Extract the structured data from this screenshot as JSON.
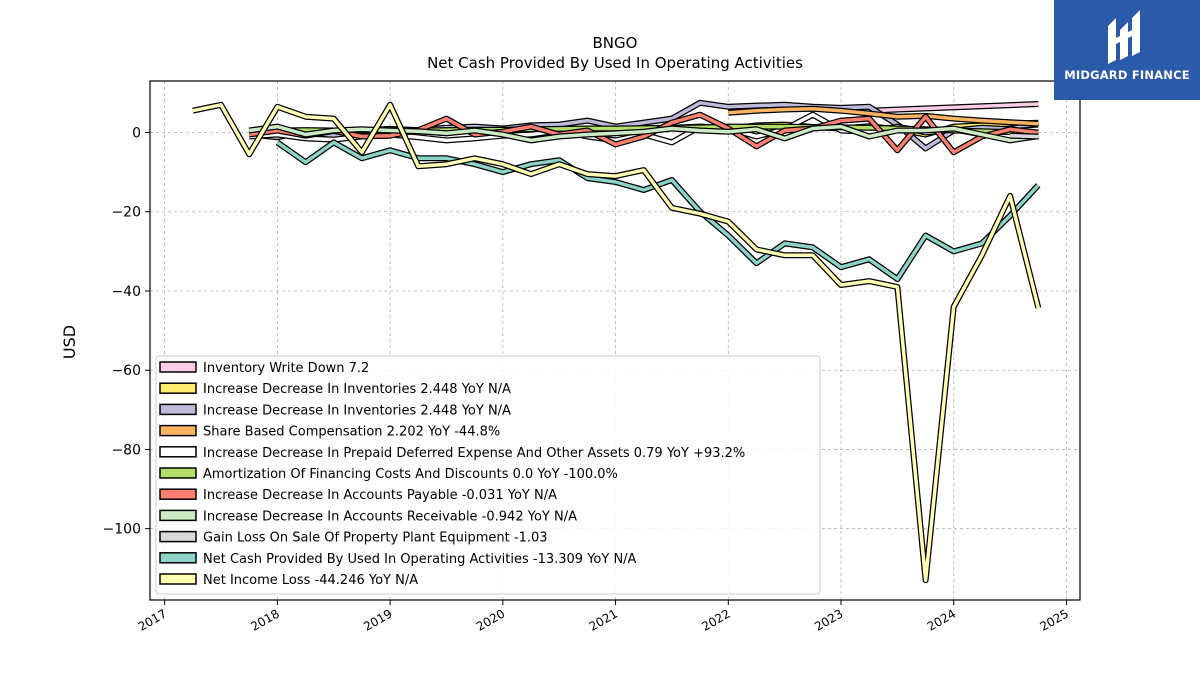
{
  "logo": {
    "text": "MIDGARD FINANCE"
  },
  "chart_data": {
    "type": "line",
    "title": "BNGO",
    "subtitle": "Net Cash Provided By Used In Operating Activities",
    "ylabel": "USD",
    "xlabel": "",
    "xlim": [
      2016.87,
      2025.12
    ],
    "ylim": [
      -118,
      13
    ],
    "yticks": [
      0,
      -20,
      -40,
      -60,
      -80,
      -100
    ],
    "ytick_labels": [
      "0",
      "−20",
      "−40",
      "−60",
      "−80",
      "−100"
    ],
    "xticks": [
      2017,
      2018,
      2019,
      2020,
      2021,
      2022,
      2023,
      2024,
      2025
    ],
    "xtick_labels": [
      "2017",
      "2018",
      "2019",
      "2020",
      "2021",
      "2022",
      "2023",
      "2024",
      "2025"
    ],
    "grid": true,
    "legend_position": "lower-left",
    "series": [
      {
        "name": "Inventory Write Down  7.2",
        "color": "#fccde5",
        "x": [
          2023.25,
          2024.75
        ],
        "y": [
          5.5,
          7.2
        ]
      },
      {
        "name": "Increase Decrease In Inventories  2.448 YoY N/A",
        "color": "#ffed6f",
        "x": [
          2017.75,
          2018.0,
          2018.25,
          2018.5,
          2018.75,
          2019.0,
          2019.25,
          2019.5,
          2019.75,
          2020.0,
          2020.25,
          2020.5,
          2020.75,
          2021.0,
          2021.25,
          2021.5,
          2021.75,
          2022.0,
          2022.25,
          2022.5,
          2022.75,
          2023.0,
          2023.25,
          2023.5,
          2023.75,
          2024.0,
          2024.25,
          2024.5,
          2024.75
        ],
        "y": [
          0.2,
          -0.3,
          0.5,
          0.1,
          -0.4,
          0.6,
          0.3,
          -0.2,
          0.8,
          0.4,
          -0.6,
          0.5,
          1.0,
          0.3,
          0.7,
          1.2,
          1.5,
          0.9,
          1.8,
          2.0,
          1.4,
          1.0,
          1.6,
          0.8,
          -0.5,
          1.5,
          1.8,
          2.2,
          2.448
        ]
      },
      {
        "name": "Increase Decrease In Inventories  2.448 YoY N/A",
        "color": "#bebada",
        "x": [
          2017.75,
          2018.0,
          2018.25,
          2018.5,
          2018.75,
          2019.0,
          2019.25,
          2019.5,
          2019.75,
          2020.0,
          2020.25,
          2020.5,
          2020.75,
          2021.0,
          2021.25,
          2021.5,
          2021.75,
          2022.0,
          2022.25,
          2022.5,
          2022.75,
          2023.0,
          2023.25,
          2023.5,
          2023.75,
          2024.0,
          2024.25,
          2024.5,
          2024.75
        ],
        "y": [
          -0.5,
          -1.2,
          0.3,
          -0.8,
          0.5,
          0.9,
          0.6,
          1.2,
          1.5,
          1.0,
          1.8,
          2.0,
          3.0,
          1.5,
          2.5,
          3.5,
          7.5,
          6.5,
          6.8,
          7.0,
          6.5,
          6.2,
          6.5,
          2.0,
          -4.0,
          0.5,
          1.2,
          0.8,
          2.448
        ]
      },
      {
        "name": "Share Based Compensation  2.202 YoY -44.8%",
        "color": "#fdb462",
        "x": [
          2022.0,
          2022.25,
          2022.5,
          2022.75,
          2023.0,
          2023.25,
          2023.5,
          2023.75,
          2024.0,
          2024.25,
          2024.5,
          2024.75
        ],
        "y": [
          5.0,
          5.5,
          5.8,
          6.0,
          5.5,
          4.8,
          4.0,
          4.2,
          3.5,
          3.0,
          2.6,
          2.202
        ]
      },
      {
        "name": "Increase Decrease In Prepaid Deferred Expense And Other Assets  0.79 YoY +93.2%",
        "color": "#ffffff",
        "x": [
          2017.75,
          2018.0,
          2018.25,
          2018.5,
          2018.75,
          2019.0,
          2019.25,
          2019.5,
          2019.75,
          2020.0,
          2020.25,
          2020.5,
          2020.75,
          2021.0,
          2021.25,
          2021.5,
          2021.75,
          2022.0,
          2022.25,
          2022.5,
          2022.75,
          2023.0,
          2023.25,
          2023.5,
          2023.75,
          2024.0,
          2024.25,
          2024.5,
          2024.75
        ],
        "y": [
          -1.0,
          -0.5,
          -1.5,
          -1.8,
          -1.0,
          -0.5,
          -1.2,
          -2.0,
          -1.5,
          -0.8,
          -0.5,
          0.5,
          -1.0,
          -2.0,
          -0.5,
          -2.5,
          1.5,
          1.0,
          -1.0,
          0.8,
          4.5,
          0.5,
          0.2,
          1.5,
          0.0,
          0.8,
          -0.5,
          0.4,
          0.79
        ]
      },
      {
        "name": "Amortization Of Financing Costs And Discounts  0.0 YoY -100.0%",
        "color": "#b3de69",
        "x": [
          2017.75,
          2018.0,
          2018.25,
          2018.5,
          2018.75,
          2019.0,
          2019.25,
          2019.5,
          2019.75,
          2020.0,
          2020.25,
          2020.5,
          2020.75,
          2021.0,
          2021.25,
          2021.5,
          2021.75,
          2022.0,
          2022.25,
          2022.5,
          2022.75,
          2023.0,
          2023.25,
          2023.5,
          2023.75,
          2024.0,
          2024.25,
          2024.5,
          2024.75
        ],
        "y": [
          0.5,
          0.5,
          0.6,
          0.5,
          0.5,
          0.6,
          0.5,
          0.6,
          0.7,
          0.7,
          0.8,
          0.9,
          1.0,
          1.0,
          1.1,
          1.2,
          1.3,
          1.5,
          1.5,
          1.5,
          1.4,
          1.3,
          1.2,
          1.0,
          0.8,
          0.5,
          0.3,
          0.1,
          0.0
        ]
      },
      {
        "name": "Increase Decrease In Accounts Payable  -0.031 YoY N/A",
        "color": "#fb8072",
        "x": [
          2017.75,
          2018.0,
          2018.25,
          2018.5,
          2018.75,
          2019.0,
          2019.25,
          2019.5,
          2019.75,
          2020.0,
          2020.25,
          2020.5,
          2020.75,
          2021.0,
          2021.25,
          2021.5,
          2021.75,
          2022.0,
          2022.25,
          2022.5,
          2022.75,
          2023.0,
          2023.25,
          2023.5,
          2023.75,
          2024.0,
          2024.25,
          2024.5,
          2024.75
        ],
        "y": [
          -0.5,
          0.5,
          -0.8,
          0.4,
          -1.0,
          -0.8,
          0.6,
          3.5,
          -0.5,
          0.2,
          1.5,
          -0.5,
          0.5,
          -3.0,
          -1.0,
          2.5,
          4.5,
          1.0,
          -3.5,
          0.5,
          1.0,
          3.0,
          3.5,
          -4.5,
          4.0,
          -5.0,
          -1.0,
          0.8,
          -0.031
        ]
      },
      {
        "name": "Increase Decrease In Accounts Receivable  -0.942 YoY N/A",
        "color": "#ccebc5",
        "x": [
          2017.75,
          2018.0,
          2018.25,
          2018.5,
          2018.75,
          2019.0,
          2019.25,
          2019.5,
          2019.75,
          2020.0,
          2020.25,
          2020.5,
          2020.75,
          2021.0,
          2021.25,
          2021.5,
          2021.75,
          2022.0,
          2022.25,
          2022.5,
          2022.75,
          2023.0,
          2023.25,
          2023.5,
          2023.75,
          2024.0,
          2024.25,
          2024.5,
          2024.75
        ],
        "y": [
          0.5,
          1.5,
          -0.5,
          0.5,
          0.8,
          0.5,
          0.3,
          -0.2,
          0.5,
          -0.5,
          -2.0,
          -1.0,
          -0.5,
          -0.2,
          0.2,
          1.0,
          0.5,
          0.2,
          0.8,
          -1.5,
          1.0,
          1.5,
          -1.0,
          0.5,
          0.5,
          1.0,
          -0.5,
          -2.0,
          -0.942
        ]
      },
      {
        "name": "Gain Loss On Sale Of Property Plant Equipment  -1.03",
        "color": "#d9d9d9",
        "x": [
          2024.5,
          2024.75
        ],
        "y": [
          -0.8,
          -1.03
        ]
      },
      {
        "name": "Net Cash Provided By Used In Operating Activities  -13.309 YoY N/A",
        "color": "#8dd3c7",
        "x": [
          2018.0,
          2018.25,
          2018.5,
          2018.75,
          2019.0,
          2019.25,
          2019.5,
          2019.75,
          2020.0,
          2020.25,
          2020.5,
          2020.75,
          2021.0,
          2021.25,
          2021.5,
          2021.75,
          2022.0,
          2022.25,
          2022.5,
          2022.75,
          2023.0,
          2023.25,
          2023.5,
          2023.75,
          2024.0,
          2024.25,
          2024.5,
          2024.75
        ],
        "y": [
          -2.5,
          -7.5,
          -2.5,
          -6.5,
          -4.5,
          -6.5,
          -6.5,
          -8.0,
          -10.0,
          -8.0,
          -7.0,
          -11.5,
          -12.5,
          -14.5,
          -12.0,
          -20.0,
          -26.0,
          -33.0,
          -28.0,
          -29.0,
          -34.0,
          -32.0,
          -37.0,
          -26.0,
          -30.0,
          -28.0,
          -21.0,
          -13.309
        ]
      },
      {
        "name": "Net Income Loss  -44.246 YoY N/A",
        "color": "#ffffb3",
        "x": [
          2017.25,
          2017.5,
          2017.75,
          2018.0,
          2018.25,
          2018.5,
          2018.75,
          2019.0,
          2019.25,
          2019.5,
          2019.75,
          2020.0,
          2020.25,
          2020.5,
          2020.75,
          2021.0,
          2021.25,
          2021.5,
          2021.75,
          2022.0,
          2022.25,
          2022.5,
          2022.75,
          2023.0,
          2023.25,
          2023.5,
          2023.75,
          2024.0,
          2024.25,
          2024.5,
          2024.75
        ],
        "y": [
          5.5,
          7.0,
          -5.5,
          6.5,
          4.0,
          3.5,
          -5.0,
          7.0,
          -8.5,
          -8.0,
          -6.5,
          -8.0,
          -10.5,
          -8.0,
          -10.5,
          -11.0,
          -9.5,
          -19.0,
          -20.5,
          -22.5,
          -29.5,
          -31.0,
          -31.0,
          -38.5,
          -37.5,
          -39.0,
          -113.0,
          -44.0,
          -31.0,
          -16.0,
          -44.246
        ]
      }
    ]
  }
}
